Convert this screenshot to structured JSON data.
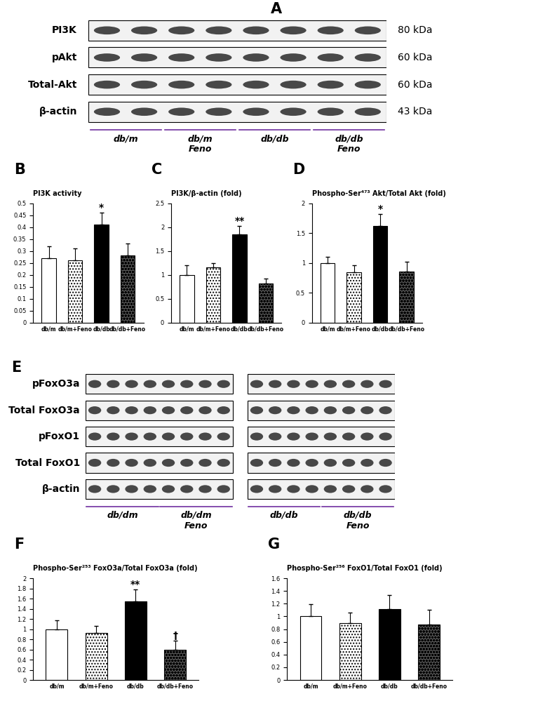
{
  "chart_data": [
    {
      "panel": "B",
      "type": "bar",
      "title": "PI3K activity",
      "categories": [
        "db/m",
        "db/m+Feno",
        "db/db",
        "db/db+Feno"
      ],
      "values": [
        0.27,
        0.26,
        0.41,
        0.28
      ],
      "errors": [
        0.05,
        0.05,
        0.05,
        0.05
      ],
      "colors": [
        "#ffffff",
        "#ffffff",
        "#000000",
        "#555555"
      ],
      "ylim": [
        0,
        0.5
      ],
      "yticks": [
        0,
        0.05,
        0.1,
        0.15,
        0.2,
        0.25,
        0.3,
        0.35,
        0.4,
        0.45,
        0.5
      ],
      "annotations": [
        {
          "category": "db/db",
          "text": "*"
        }
      ]
    },
    {
      "panel": "C",
      "type": "bar",
      "title": "PI3K/β-actin (fold)",
      "categories": [
        "db/m",
        "db/m+Feno",
        "db/db",
        "db/db+Feno"
      ],
      "values": [
        1.0,
        1.15,
        1.85,
        0.82
      ],
      "errors": [
        0.2,
        0.1,
        0.17,
        0.1
      ],
      "colors": [
        "#ffffff",
        "#ffffff",
        "#000000",
        "#555555"
      ],
      "ylim": [
        0,
        2.5
      ],
      "yticks": [
        0,
        0.5,
        1,
        1.5,
        2,
        2.5
      ],
      "annotations": [
        {
          "category": "db/db",
          "text": "**"
        }
      ]
    },
    {
      "panel": "D",
      "type": "bar",
      "title": "Phospho-Ser⁴⁷³ Akt/Total Akt (fold)",
      "categories": [
        "db/m",
        "db/m+Feno",
        "db/db",
        "db/db+Feno"
      ],
      "values": [
        1.0,
        0.84,
        1.62,
        0.85
      ],
      "errors": [
        0.1,
        0.12,
        0.2,
        0.17
      ],
      "colors": [
        "#ffffff",
        "#ffffff",
        "#000000",
        "#555555"
      ],
      "ylim": [
        0,
        2
      ],
      "yticks": [
        0,
        0.5,
        1,
        1.5,
        2
      ],
      "annotations": [
        {
          "category": "db/db",
          "text": "*"
        }
      ]
    },
    {
      "panel": "F",
      "type": "bar",
      "title": "Phospho-Ser²⁵³ FoxO3a/Total FoxO3a (fold)",
      "categories": [
        "db/m",
        "db/m+Feno",
        "db/db",
        "db/db+Feno"
      ],
      "values": [
        1.0,
        0.93,
        1.55,
        0.6
      ],
      "errors": [
        0.17,
        0.13,
        0.23,
        0.18
      ],
      "colors": [
        "#ffffff",
        "#ffffff",
        "#000000",
        "#555555"
      ],
      "ylim": [
        0,
        2
      ],
      "yticks": [
        0,
        0.2,
        0.4,
        0.6,
        0.8,
        1,
        1.2,
        1.4,
        1.6,
        1.8,
        2
      ],
      "annotations": [
        {
          "category": "db/db",
          "text": "**"
        },
        {
          "category": "db/db+Feno",
          "text": "†"
        }
      ]
    },
    {
      "panel": "G",
      "type": "bar",
      "title": "Phospho-Ser²⁵⁶ FoxO1/Total FoxO1 (fold)",
      "categories": [
        "db/m",
        "db/m+Feno",
        "db/db",
        "db/db+Feno"
      ],
      "values": [
        1.0,
        0.89,
        1.12,
        0.87
      ],
      "errors": [
        0.19,
        0.17,
        0.22,
        0.24
      ],
      "colors": [
        "#ffffff",
        "#ffffff",
        "#000000",
        "#555555"
      ],
      "ylim": [
        0,
        1.6
      ],
      "yticks": [
        0,
        0.2,
        0.4,
        0.6,
        0.8,
        1,
        1.2,
        1.4,
        1.6
      ]
    }
  ],
  "blots": [
    {
      "panel": "A",
      "rows": [
        {
          "label": "PI3K",
          "size": "80 kDa"
        },
        {
          "label": "pAkt",
          "size": "60 kDa"
        },
        {
          "label": "Total-Akt",
          "size": "60 kDa"
        },
        {
          "label": "β-actin",
          "size": "43 kDa"
        }
      ],
      "groups": [
        "db/m",
        "db/m\nFeno",
        "db/db",
        "db/db\nFeno"
      ]
    },
    {
      "panel": "E",
      "rows": [
        {
          "label": "pFoxO3a"
        },
        {
          "label": "Total FoxO3a"
        },
        {
          "label": "pFoxO1"
        },
        {
          "label": "Total FoxO1"
        },
        {
          "label": "β-actin"
        }
      ],
      "groups": [
        "db/dm",
        "db/dm\nFeno",
        "db/db",
        "db/db\nFeno"
      ]
    }
  ]
}
